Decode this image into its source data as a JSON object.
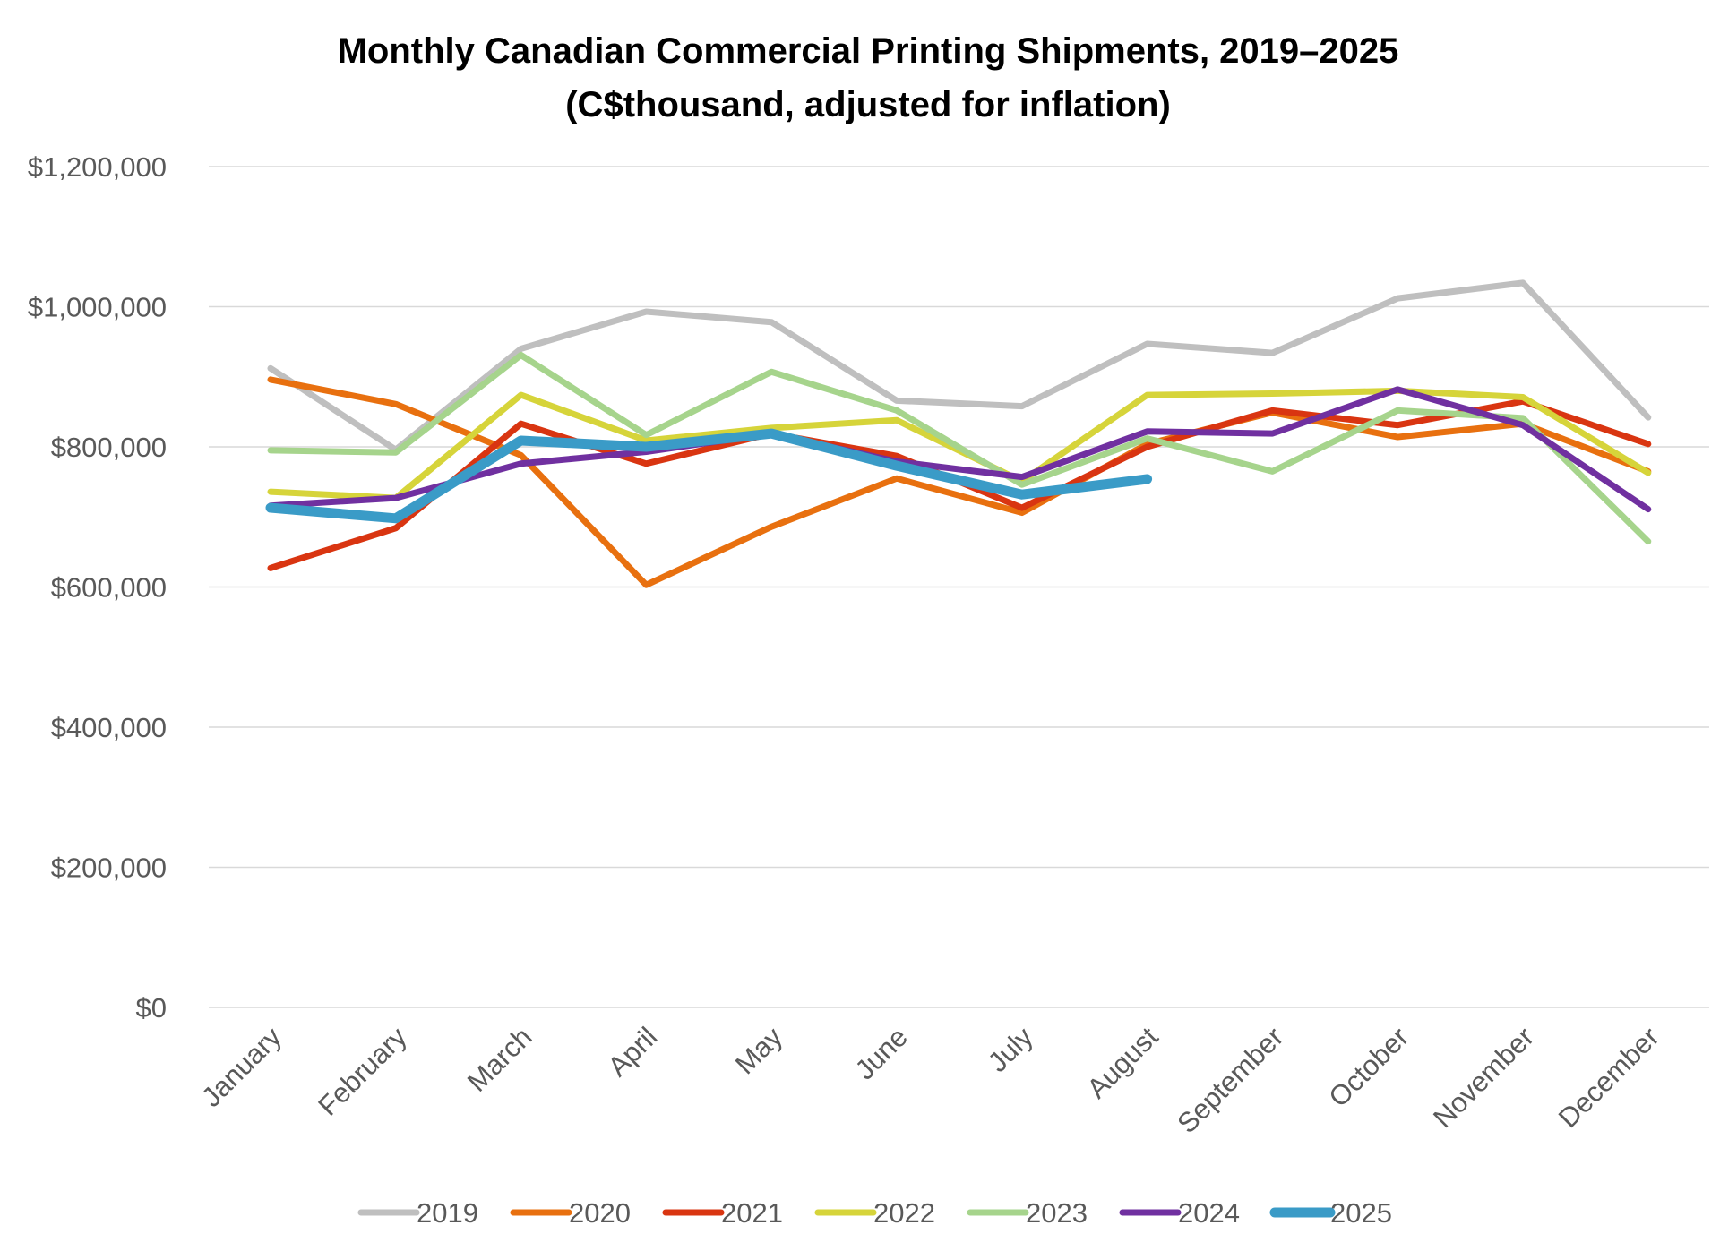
{
  "chart_data": {
    "type": "line",
    "title": "Monthly Canadian Commercial Printing Shipments, 2019–2025",
    "subtitle": "(C$thousand, adjusted for inflation)",
    "xlabel": "",
    "ylabel": "",
    "ylim": [
      0,
      1200000
    ],
    "yticks": [
      0,
      200000,
      400000,
      600000,
      800000,
      1000000,
      1200000
    ],
    "ytick_labels": [
      "$0",
      "$200,000",
      "$400,000",
      "$600,000",
      "$800,000",
      "$1,000,000",
      "$1,200,000"
    ],
    "grid": true,
    "legend_position": "bottom",
    "categories": [
      "January",
      "February",
      "March",
      "April",
      "May",
      "June",
      "July",
      "August",
      "September",
      "October",
      "November",
      "December"
    ],
    "series": [
      {
        "name": "2019",
        "color": "#bfbfbf",
        "values": [
          912000,
          796000,
          940000,
          993000,
          978000,
          866000,
          858000,
          947000,
          934000,
          1012000,
          1034000,
          842000
        ]
      },
      {
        "name": "2020",
        "color": "#e8700f",
        "values": [
          896000,
          861000,
          788000,
          603000,
          686000,
          755000,
          706000,
          804000,
          849000,
          814000,
          833000,
          765000
        ]
      },
      {
        "name": "2021",
        "color": "#d93511",
        "values": [
          627000,
          684000,
          833000,
          776000,
          819000,
          787000,
          713000,
          800000,
          852000,
          831000,
          865000,
          804000
        ]
      },
      {
        "name": "2022",
        "color": "#d6d43a",
        "values": [
          736000,
          727000,
          874000,
          809000,
          827000,
          838000,
          751000,
          874000,
          876000,
          880000,
          871000,
          763000
        ]
      },
      {
        "name": "2023",
        "color": "#a6d48c",
        "values": [
          795000,
          792000,
          931000,
          817000,
          907000,
          852000,
          746000,
          812000,
          765000,
          852000,
          841000,
          665000
        ]
      },
      {
        "name": "2024",
        "color": "#7030a0",
        "values": [
          716000,
          727000,
          776000,
          793000,
          819000,
          779000,
          757000,
          822000,
          819000,
          882000,
          831000,
          711000
        ]
      },
      {
        "name": "2025",
        "color": "#3a9bc7",
        "values": [
          713000,
          698000,
          809000,
          800000,
          819000,
          773000,
          732000,
          754000,
          null,
          null,
          null,
          null
        ]
      }
    ]
  }
}
